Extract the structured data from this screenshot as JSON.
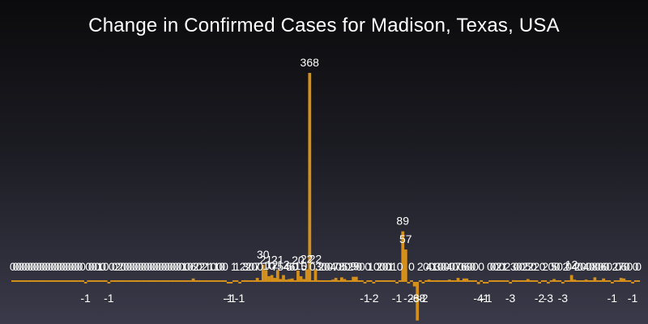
{
  "chart_data": {
    "type": "bar",
    "title": "Change in Confirmed Cases for Madison, Texas, USA",
    "xlabel": "",
    "ylabel": "",
    "ylim": [
      -70,
      380
    ],
    "grid": false,
    "legend": "none",
    "bar_color": "#d4901a",
    "values": [
      0,
      0,
      0,
      0,
      0,
      0,
      0,
      0,
      0,
      0,
      0,
      0,
      0,
      0,
      0,
      0,
      0,
      0,
      0,
      0,
      0,
      0,
      0,
      0,
      0,
      -1,
      0,
      0,
      0,
      0,
      1,
      0,
      0,
      -1,
      0,
      0,
      2,
      2,
      0,
      0,
      0,
      0,
      0,
      0,
      0,
      0,
      0,
      0,
      0,
      0,
      0,
      0,
      0,
      0,
      0,
      0,
      0,
      0,
      0,
      1,
      0,
      0,
      6,
      2,
      0,
      2,
      2,
      1,
      1,
      0,
      1,
      0,
      0,
      0,
      -1,
      -1,
      1,
      1,
      -1,
      2,
      3,
      2,
      0,
      0,
      7,
      0,
      30,
      21,
      10,
      12,
      7,
      21,
      5,
      12,
      4,
      5,
      6,
      0,
      20,
      10,
      5,
      22,
      368,
      0,
      22,
      3,
      2,
      0,
      0,
      0,
      4,
      7,
      0,
      8,
      5,
      0,
      2,
      9,
      9,
      0,
      0,
      -1,
      0,
      1,
      -2,
      0,
      2,
      0,
      0,
      0,
      1,
      1,
      -1,
      0,
      89,
      57,
      -2,
      0,
      -8,
      -68,
      2,
      -2,
      0,
      4,
      0,
      1,
      3,
      0,
      0,
      0,
      4,
      0,
      0,
      7,
      0,
      6,
      6,
      0,
      0,
      0,
      -4,
      0,
      -1,
      -1,
      0,
      0,
      0,
      2,
      0,
      1,
      2,
      -3,
      3,
      0,
      0,
      0,
      2,
      5,
      2,
      0,
      2,
      -2,
      0,
      2,
      -3,
      0,
      5,
      0,
      0,
      -3,
      2,
      0,
      12,
      4,
      2,
      0,
      0,
      4,
      0,
      0,
      8,
      0,
      0,
      6,
      0,
      0,
      -1,
      2,
      0,
      7,
      6,
      0,
      0,
      -1,
      0,
      0
    ]
  }
}
